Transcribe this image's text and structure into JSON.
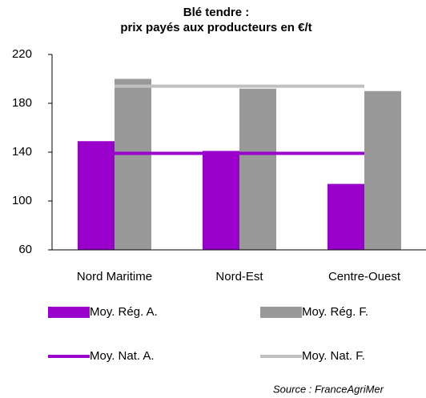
{
  "chart_data": {
    "type": "bar",
    "title": [
      "Blé tendre :",
      "prix payés aux producteurs en €/t"
    ],
    "categories": [
      "Nord Maritime",
      "Nord-Est",
      "Centre-Ouest"
    ],
    "series": [
      {
        "name": "Moy. Rég. A.",
        "color": "#9900cc",
        "kind": "bar",
        "values": [
          149,
          141,
          114
        ]
      },
      {
        "name": "Moy. Rég. F.",
        "color": "#999999",
        "kind": "bar",
        "values": [
          200,
          192,
          190
        ]
      },
      {
        "name": "Moy. Nat. A.",
        "color": "#9900cc",
        "kind": "line",
        "values": [
          139,
          139,
          139
        ]
      },
      {
        "name": "Moy. Nat. F.",
        "color": "#c0c0c0",
        "kind": "line",
        "values": [
          194,
          194,
          194
        ]
      }
    ],
    "ylim": [
      60,
      220
    ],
    "yticks": [
      60,
      100,
      140,
      180,
      220
    ],
    "legend": "bottom",
    "source": "Source : FranceAgriMer"
  }
}
